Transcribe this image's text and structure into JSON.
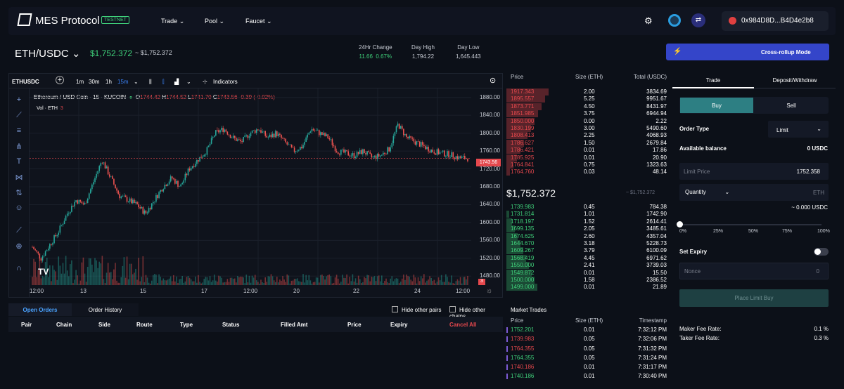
{
  "nav": {
    "brand": "MES Protocol",
    "badge": "TESTNET",
    "links": [
      "Trade",
      "Pool",
      "Faucet"
    ],
    "wallet": "0x984D8D...B4D4e2b8"
  },
  "market": {
    "pair": "ETH/USDC",
    "price": "$1,752.372",
    "price_sub": "~ $1,752.372",
    "stats": [
      {
        "label": "24Hr Change",
        "value": "11.66",
        "pct": "0.67%"
      },
      {
        "label": "Day High",
        "value": "1,794.22"
      },
      {
        "label": "Day Low",
        "value": "1,645.443"
      }
    ],
    "mode_button": "Cross-rollup Mode"
  },
  "chart": {
    "symbol": "ETHUSDC",
    "intervals": [
      "1m",
      "30m",
      "1h",
      "15m"
    ],
    "indicators": "Indicators",
    "legend": {
      "title": "Ethereum / USD Coin · 15 · KUCOIN",
      "o": "O",
      "ov": "1744.42",
      "h": "H",
      "hv": "1744.52",
      "l": "L",
      "lv": "1741.70",
      "c": "C",
      "cv": "1743.56",
      "chg": "-0.39 (-0.02%)"
    },
    "vol_label": "Vol · ETH",
    "vol_value": "3",
    "last_price": "1743.56",
    "vol_tag": "3",
    "yticks": [
      "1880.00",
      "1840.00",
      "1800.00",
      "1760.00",
      "1720.00",
      "1680.00",
      "1640.00",
      "1600.00",
      "1560.00",
      "1520.00",
      "1480.00"
    ],
    "xticks": [
      "12:00",
      "13",
      "15",
      "17",
      "12:00",
      "20",
      "22",
      "24",
      "12:00"
    ]
  },
  "chart_data": {
    "type": "candlestick",
    "x_ticks": [
      "12:00",
      "13",
      "15",
      "17",
      "12:00",
      "20",
      "22",
      "24",
      "12:00"
    ],
    "ylim": [
      1460,
      1900
    ],
    "close_path": [
      1545,
      1520,
      1550,
      1580,
      1620,
      1650,
      1640,
      1690,
      1740,
      1700,
      1660,
      1650,
      1640,
      1620,
      1650,
      1680,
      1700,
      1680,
      1720,
      1740,
      1760,
      1800,
      1810,
      1790,
      1780,
      1800,
      1810,
      1790,
      1800,
      1780,
      1760,
      1770,
      1810,
      1800,
      1790,
      1760,
      1755,
      1750,
      1760,
      1745,
      1750,
      1765,
      1820,
      1790,
      1780,
      1770,
      1760,
      1755,
      1752,
      1745,
      1744
    ]
  },
  "orders": {
    "tabs": [
      "Open Orders",
      "Order History"
    ],
    "hide1": "Hide other pairs",
    "hide2": "Hide other chains",
    "columns": [
      "Pair",
      "Chain",
      "Side",
      "Route",
      "Type",
      "Status",
      "Filled Amt",
      "Price",
      "Expiry"
    ],
    "cancel_all": "Cancel All"
  },
  "orderbook": {
    "headers": [
      "Price",
      "Size (ETH)",
      "Total (USDC)"
    ],
    "asks": [
      [
        "1917.343",
        "2.00",
        "3834.69"
      ],
      [
        "1895.557",
        "5.25",
        "9951.67"
      ],
      [
        "1873.771",
        "4.50",
        "8431.97"
      ],
      [
        "1851.985",
        "3.75",
        "6944.94"
      ],
      [
        "1850.000",
        "0.00",
        "2.22"
      ],
      [
        "1830.199",
        "3.00",
        "5490.60"
      ],
      [
        "1808.413",
        "2.25",
        "4068.93"
      ],
      [
        "1786.627",
        "1.50",
        "2679.84"
      ],
      [
        "1786.421",
        "0.01",
        "17.86"
      ],
      [
        "1785.925",
        "0.01",
        "20.90"
      ],
      [
        "1764.841",
        "0.75",
        "1323.63"
      ],
      [
        "1764.760",
        "0.03",
        "48.14"
      ]
    ],
    "mid": "$1,752.372",
    "mid_sub": "~ $1,752.372",
    "bids": [
      [
        "1739.983",
        "0.45",
        "784.38"
      ],
      [
        "1731.814",
        "1.01",
        "1742.90"
      ],
      [
        "1718.197",
        "1.52",
        "2614.41"
      ],
      [
        "1699.135",
        "2.05",
        "3485.61"
      ],
      [
        "1674.625",
        "2.60",
        "4357.04"
      ],
      [
        "1644.670",
        "3.18",
        "5228.73"
      ],
      [
        "1609.267",
        "3.79",
        "6100.09"
      ],
      [
        "1568.419",
        "4.45",
        "6971.62"
      ],
      [
        "1550.000",
        "2.41",
        "3739.03"
      ],
      [
        "1549.872",
        "0.01",
        "15.50"
      ],
      [
        "1500.000",
        "1.58",
        "2386.52"
      ],
      [
        "1499.000",
        "0.01",
        "21.89"
      ]
    ]
  },
  "trades": {
    "title": "Market Trades",
    "headers": [
      "Price",
      "Size (ETH)",
      "Timestamp"
    ],
    "rows": [
      [
        "1752.201",
        "0.01",
        "7:32:12 PM"
      ],
      [
        "1739.983",
        "0.05",
        "7:32:06 PM"
      ],
      [
        "1764.355",
        "0.05",
        "7:31:32 PM"
      ],
      [
        "1764.355",
        "0.05",
        "7:31:24 PM"
      ],
      [
        "1740.186",
        "0.01",
        "7:31:17 PM"
      ],
      [
        "1740.186",
        "0.01",
        "7:30:40 PM"
      ]
    ]
  },
  "panel": {
    "tabs": [
      "Trade",
      "Deposit/Withdraw"
    ],
    "buy": "Buy",
    "sell": "Sell",
    "order_type_label": "Order Type",
    "order_type": "Limit",
    "balance_label": "Available balance",
    "balance": "0 USDC",
    "limit_price_label": "Limit Price",
    "limit_price": "1752.358",
    "qty_label": "Quantity",
    "qty_unit": "ETH",
    "qty_usdc": "~ 0.000 USDC",
    "slider_ticks": [
      "0%",
      "25%",
      "50%",
      "75%",
      "100%"
    ],
    "slider_value": 0,
    "expiry_label": "Set Expiry",
    "nonce_label": "Nonce",
    "nonce_value": "0",
    "place": "Place Limit Buy",
    "maker_label": "Maker Fee Rate:",
    "maker": "0.1 %",
    "taker_label": "Taker Fee Rate:",
    "taker": "0.3 %"
  },
  "colors": {
    "green": "#3fd07a",
    "red": "#e5484d",
    "accent": "#2d7f83",
    "mode": "#3445c9"
  }
}
